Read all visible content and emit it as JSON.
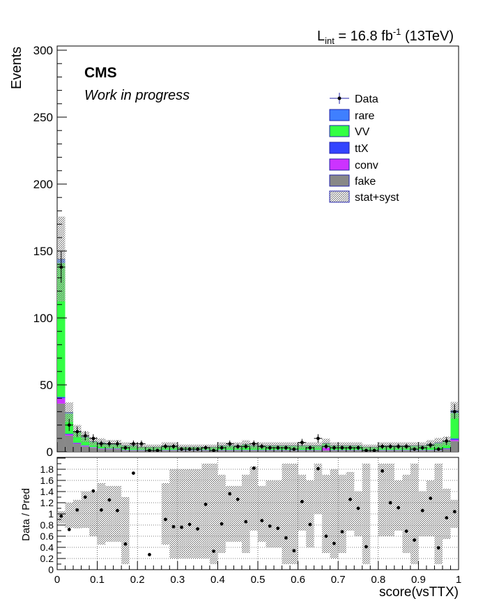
{
  "header": {
    "lumi_prefix": "L",
    "lumi_sub": "int",
    "lumi_value": " = 16.8 fb",
    "lumi_sup": "-1",
    "lumi_energy": " (13TeV)"
  },
  "labels": {
    "cms": "CMS",
    "wip": "Work in progress",
    "ylabel_top": "Events",
    "ylabel_bottom": "Data / Pred",
    "xlabel": "score(vsTTX)"
  },
  "colors": {
    "rare": "#3f7fff",
    "VV": "#33ff44",
    "ttX": "#3344ff",
    "conv": "#cc33ff",
    "fake": "#888888",
    "data": "#000000"
  },
  "chart_data": [
    {
      "type": "bar",
      "stacked": true,
      "xlim": [
        0,
        1
      ],
      "ylim": [
        0,
        300
      ],
      "yticks": [
        0,
        50,
        100,
        150,
        200,
        250,
        300
      ],
      "xticks": [
        0,
        0.1,
        0.2,
        0.3,
        0.4,
        0.5,
        0.6,
        0.7,
        0.8,
        0.9,
        1
      ],
      "bin_width": 0.02,
      "x": [
        0.01,
        0.03,
        0.05,
        0.07,
        0.09,
        0.11,
        0.13,
        0.15,
        0.17,
        0.19,
        0.21,
        0.23,
        0.25,
        0.27,
        0.29,
        0.31,
        0.33,
        0.35,
        0.37,
        0.39,
        0.41,
        0.43,
        0.45,
        0.47,
        0.49,
        0.51,
        0.53,
        0.55,
        0.57,
        0.59,
        0.61,
        0.63,
        0.65,
        0.67,
        0.69,
        0.71,
        0.73,
        0.75,
        0.77,
        0.79,
        0.81,
        0.83,
        0.85,
        0.87,
        0.89,
        0.91,
        0.93,
        0.95,
        0.97,
        0.99
      ],
      "legend": {
        "position": "top-right",
        "entries": [
          "Data",
          "rare",
          "VV",
          "ttX",
          "conv",
          "fake",
          "stat+syst"
        ]
      },
      "series": [
        {
          "name": "fake",
          "values": [
            36,
            12,
            6,
            4,
            3,
            2,
            2,
            2,
            1,
            1,
            1,
            1,
            1,
            1,
            1,
            1,
            1,
            1,
            1,
            1,
            1,
            1,
            1,
            1,
            1,
            1,
            1,
            1,
            1,
            1,
            1,
            1,
            1,
            1,
            1,
            1,
            1,
            1,
            1,
            1,
            1,
            1,
            1,
            1,
            1,
            1,
            1,
            1,
            2,
            8
          ]
        },
        {
          "name": "conv",
          "values": [
            4,
            1,
            0.5,
            0.5,
            0.3,
            0.3,
            0.3,
            0.3,
            0.2,
            0.2,
            0.2,
            0.2,
            0.2,
            0.2,
            0.2,
            0.2,
            0.2,
            0.2,
            0.2,
            0.2,
            0.2,
            0.2,
            0.2,
            0.2,
            0.2,
            0.2,
            0.2,
            0.2,
            0.2,
            0.2,
            0.2,
            0.2,
            0.2,
            2,
            0.2,
            0.2,
            0.2,
            0.2,
            0.2,
            0.2,
            0.2,
            0.2,
            0.2,
            0.2,
            0.2,
            0.2,
            0.2,
            0.2,
            0.3,
            1
          ]
        },
        {
          "name": "ttX",
          "values": [
            1,
            0.5,
            0.3,
            0.3,
            0.2,
            0.2,
            0.2,
            0.2,
            0.2,
            0.2,
            0.2,
            0.2,
            0.2,
            0.2,
            0.2,
            0.2,
            0.2,
            0.2,
            0.2,
            0.2,
            0.2,
            0.2,
            0.2,
            0.2,
            0.2,
            0.2,
            0.2,
            0.2,
            0.2,
            0.2,
            0.2,
            0.2,
            0.2,
            0.2,
            0.2,
            0.2,
            0.2,
            0.2,
            0.2,
            0.2,
            0.2,
            0.2,
            0.2,
            0.2,
            0.2,
            0.2,
            0.2,
            0.2,
            0.3,
            1
          ]
        },
        {
          "name": "VV",
          "values": [
            100,
            15,
            8,
            6,
            4,
            4,
            3,
            3,
            3,
            3,
            2,
            2,
            2,
            3,
            3,
            2,
            2,
            2,
            2,
            2,
            3,
            3,
            3,
            4,
            3,
            3,
            3,
            3,
            3,
            3,
            3,
            3,
            3,
            3,
            3,
            3,
            3,
            3,
            2,
            2,
            3,
            3,
            3,
            3,
            3,
            3,
            4,
            5,
            5,
            19
          ]
        },
        {
          "name": "rare",
          "values": [
            3,
            1,
            0.6,
            0.5,
            0.4,
            0.4,
            0.3,
            0.3,
            0.3,
            0.3,
            0.2,
            0.2,
            0.2,
            0.3,
            0.3,
            0.2,
            0.2,
            0.2,
            0.2,
            0.2,
            0.3,
            0.3,
            0.3,
            0.3,
            0.3,
            0.3,
            0.3,
            0.3,
            0.3,
            0.3,
            0.3,
            0.3,
            0.3,
            0.3,
            0.3,
            0.3,
            0.3,
            0.3,
            0.2,
            0.2,
            0.3,
            0.3,
            0.3,
            0.3,
            0.3,
            0.3,
            0.4,
            0.5,
            0.5,
            2
          ]
        }
      ],
      "unc_relative": [
        0.22,
        0.25,
        0.3,
        0.35,
        0.4,
        0.45,
        0.5,
        0.5,
        0.5,
        0.5,
        0.5,
        0.5,
        0.5,
        0.5,
        0.5,
        0.5,
        0.5,
        0.5,
        0.5,
        0.5,
        0.5,
        0.5,
        0.5,
        0.5,
        0.5,
        0.5,
        0.5,
        0.5,
        0.5,
        0.5,
        0.5,
        0.5,
        0.5,
        0.5,
        0.5,
        0.5,
        0.5,
        0.5,
        0.5,
        0.5,
        0.5,
        0.5,
        0.5,
        0.5,
        0.5,
        0.5,
        0.5,
        0.5,
        0.4,
        0.2
      ],
      "data": [
        138,
        20,
        15,
        12,
        10,
        6,
        6,
        6,
        3,
        6,
        6,
        1,
        1,
        4,
        4,
        2,
        2,
        2,
        3,
        1,
        3,
        6,
        4,
        4,
        6,
        4,
        3,
        3,
        3,
        2,
        7,
        3,
        10,
        4,
        3,
        3,
        3,
        3,
        1,
        1,
        4,
        4,
        4,
        4,
        2,
        3,
        5,
        2,
        8,
        30
      ]
    },
    {
      "type": "scatter",
      "xlim": [
        0,
        1
      ],
      "ylim": [
        0,
        2
      ],
      "yticks": [
        0,
        0.2,
        0.4,
        0.6,
        0.8,
        1,
        1.2,
        1.4,
        1.6,
        1.8
      ],
      "xticks": [
        0,
        0.1,
        0.2,
        0.3,
        0.4,
        0.5,
        0.6,
        0.7,
        0.8,
        0.9,
        1
      ],
      "x": [
        0.01,
        0.03,
        0.05,
        0.07,
        0.09,
        0.11,
        0.13,
        0.15,
        0.17,
        0.19,
        0.21,
        0.23,
        0.25,
        0.27,
        0.29,
        0.31,
        0.33,
        0.35,
        0.37,
        0.39,
        0.41,
        0.43,
        0.45,
        0.47,
        0.49,
        0.51,
        0.53,
        0.55,
        0.57,
        0.59,
        0.61,
        0.63,
        0.65,
        0.67,
        0.69,
        0.71,
        0.73,
        0.75,
        0.77,
        0.79,
        0.81,
        0.83,
        0.85,
        0.87,
        0.89,
        0.91,
        0.93,
        0.95,
        0.97,
        0.99
      ],
      "ratio": [
        0.96,
        0.72,
        1.07,
        1.3,
        1.41,
        1.07,
        1.25,
        1.06,
        0.46,
        1.73,
        null,
        0.27,
        null,
        0.9,
        0.77,
        0.76,
        0.81,
        0.73,
        1.17,
        0.33,
        0.82,
        1.36,
        1.26,
        0.86,
        1.82,
        0.88,
        0.78,
        0.74,
        0.57,
        0.34,
        1.22,
        0.81,
        1.81,
        0.6,
        0.47,
        0.68,
        1.26,
        1.1,
        0.41,
        null,
        1.77,
        1.2,
        1.11,
        0.69,
        0.53,
        1.06,
        1.28,
        0.39,
        0.93,
        1.04
      ],
      "band_lo": [
        0.83,
        0.75,
        0.74,
        0.75,
        0.6,
        0.45,
        0.5,
        0.5,
        0.1,
        null,
        null,
        null,
        null,
        0.45,
        0.2,
        0.2,
        0.2,
        0.2,
        0.2,
        0.1,
        0.3,
        0.5,
        0.5,
        0.3,
        0.7,
        0.5,
        0.4,
        0.4,
        0.1,
        0.1,
        0.7,
        0.4,
        1.0,
        0.3,
        0.2,
        0.3,
        0.7,
        0.6,
        0.1,
        null,
        0.6,
        0.6,
        0.7,
        0.3,
        0.1,
        0.6,
        0.6,
        0.1,
        0.55,
        0.75
      ],
      "band_hi": [
        1.05,
        1.2,
        1.25,
        1.4,
        1.4,
        1.55,
        1.5,
        1.5,
        1.3,
        null,
        null,
        null,
        null,
        1.55,
        1.8,
        1.8,
        1.8,
        1.8,
        1.9,
        1.9,
        1.7,
        1.5,
        1.5,
        1.7,
        1.85,
        1.5,
        1.6,
        1.6,
        1.9,
        1.9,
        1.7,
        1.6,
        1.9,
        1.7,
        1.8,
        1.7,
        1.75,
        1.4,
        1.9,
        null,
        1.9,
        1.9,
        1.6,
        1.7,
        1.9,
        1.4,
        1.6,
        1.9,
        1.45,
        1.25
      ]
    }
  ]
}
